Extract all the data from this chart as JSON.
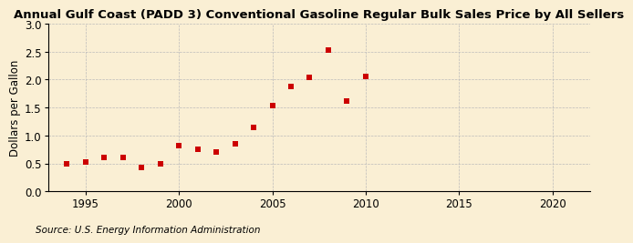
{
  "title": "Annual Gulf Coast (PADD 3) Conventional Gasoline Regular Bulk Sales Price by All Sellers",
  "ylabel": "Dollars per Gallon",
  "source": "Source: U.S. Energy Information Administration",
  "background_color": "#faefd4",
  "data": [
    [
      1994,
      0.5
    ],
    [
      1995,
      0.52
    ],
    [
      1996,
      0.6
    ],
    [
      1997,
      0.6
    ],
    [
      1998,
      0.42
    ],
    [
      1999,
      0.5
    ],
    [
      2000,
      0.82
    ],
    [
      2001,
      0.75
    ],
    [
      2002,
      0.7
    ],
    [
      2003,
      0.85
    ],
    [
      2004,
      1.15
    ],
    [
      2005,
      1.53
    ],
    [
      2006,
      1.88
    ],
    [
      2007,
      2.04
    ],
    [
      2008,
      2.52
    ],
    [
      2009,
      1.62
    ],
    [
      2010,
      2.05
    ]
  ],
  "xlim": [
    1993,
    2022
  ],
  "ylim": [
    0.0,
    3.0
  ],
  "xticks": [
    1995,
    2000,
    2005,
    2010,
    2015,
    2020
  ],
  "yticks": [
    0.0,
    0.5,
    1.0,
    1.5,
    2.0,
    2.5,
    3.0
  ],
  "marker_color": "#cc0000",
  "marker": "s",
  "marker_size": 4,
  "grid_color": "#bbbbbb",
  "title_fontsize": 9.5,
  "label_fontsize": 8.5,
  "tick_fontsize": 8.5,
  "source_fontsize": 7.5
}
